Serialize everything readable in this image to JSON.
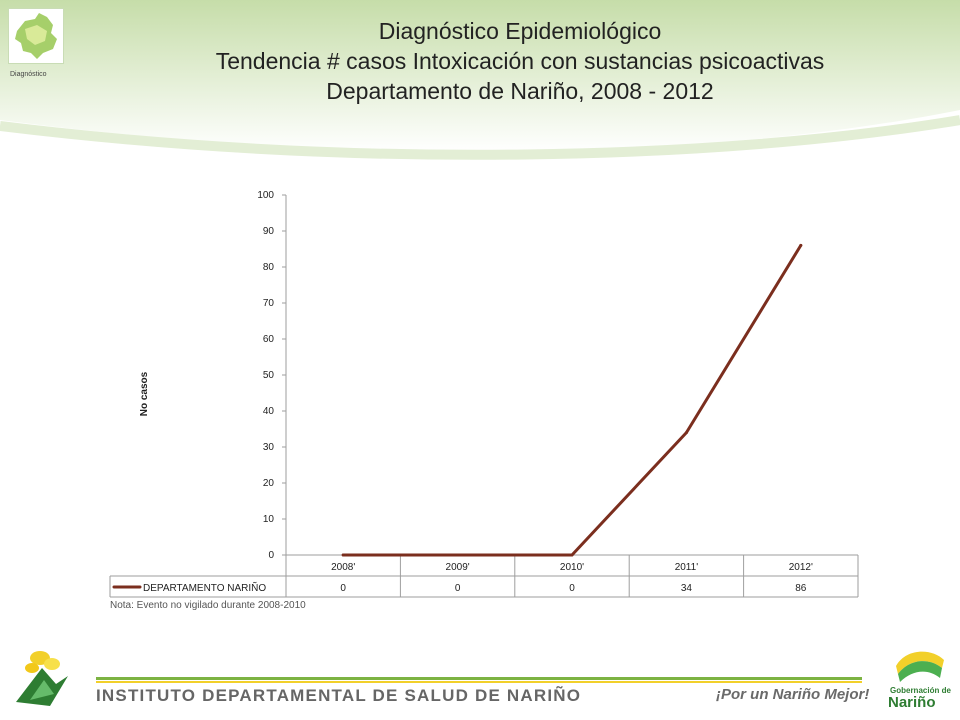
{
  "header": {
    "logo_caption": "Diagnóstico",
    "title_lines": [
      "Diagnóstico Epidemiológico",
      "Tendencia # casos  Intoxicación con sustancias psicoactivas",
      "Departamento de Nariño,  2008 - 2012"
    ]
  },
  "chart_data": {
    "type": "line",
    "title": "",
    "xlabel": "",
    "ylabel": "No casos",
    "ylim": [
      0,
      100
    ],
    "yticks": [
      0,
      10,
      20,
      30,
      40,
      50,
      60,
      70,
      80,
      90,
      100
    ],
    "grid": false,
    "legend": "data-table",
    "categories": [
      "2008'",
      "2009'",
      "2010'",
      "2011'",
      "2012'"
    ],
    "series": [
      {
        "name": "DEPARTAMENTO NARIÑO",
        "values": [
          0,
          0,
          0,
          34,
          86
        ],
        "color": "#7b2e1e"
      }
    ],
    "note": "Nota: Evento no vigilado durante 2008-2010"
  },
  "footer": {
    "institute": "INSTITUTO DEPARTAMENTAL DE SALUD DE NARIÑO",
    "slogan": "¡Por un Nariño Mejor!",
    "gob_line1": "Gobernación de",
    "gob_line2": "Nariño"
  },
  "colors": {
    "header_green": "#bfd9a0",
    "accent_green": "#7cb342",
    "accent_yellow": "#f2d02a"
  }
}
